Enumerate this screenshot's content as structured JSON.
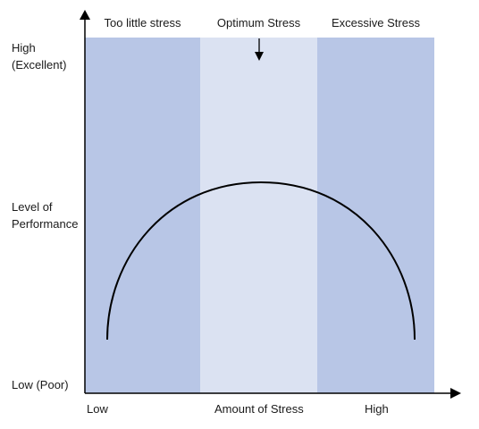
{
  "y_axis": {
    "high_label": "High",
    "high_sub_label": "(Excellent)",
    "title_line1": "Level of",
    "title_line2": "Performance",
    "low_label": "Low (Poor)"
  },
  "x_axis": {
    "low_label": "Low",
    "title": "Amount of Stress",
    "high_label": "High"
  },
  "zones": [
    {
      "label": "Too little stress",
      "color": "#b8c6e6"
    },
    {
      "label": "Optimum Stress",
      "color": "#dbe2f2"
    },
    {
      "label": "Excessive Stress",
      "color": "#b8c6e6"
    }
  ],
  "curve_color": "#000000"
}
